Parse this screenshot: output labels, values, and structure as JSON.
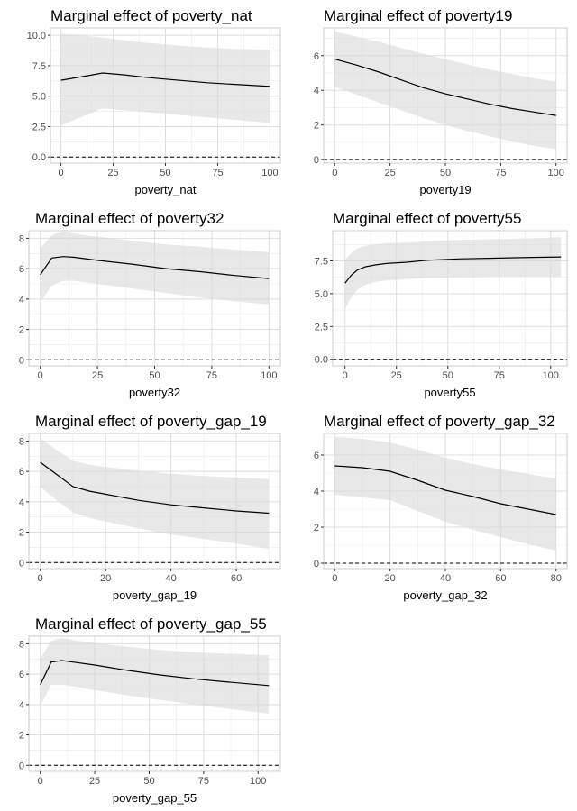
{
  "chart_data": [
    {
      "type": "line",
      "title": "Marginal effect of poverty_nat",
      "xlabel": "poverty_nat",
      "ylabel": "",
      "xlim": [
        -5,
        105
      ],
      "ylim": [
        -0.5,
        10.6
      ],
      "xticks": [
        0,
        25,
        50,
        75,
        100
      ],
      "xtick_labels": [
        "0",
        "25",
        "50",
        "75",
        "100"
      ],
      "yticks": [
        0,
        2.5,
        5,
        7.5,
        10
      ],
      "ytick_labels": [
        "0.0",
        "2.5",
        "5.0",
        "7.5",
        "10.0"
      ],
      "grid": true,
      "reference_line": 0,
      "x": [
        0,
        10,
        20,
        30,
        40,
        50,
        60,
        70,
        80,
        90,
        100
      ],
      "estimate": [
        6.3,
        6.6,
        6.9,
        6.75,
        6.55,
        6.4,
        6.25,
        6.1,
        6.0,
        5.9,
        5.8
      ],
      "lower": [
        2.6,
        3.3,
        4.0,
        3.85,
        3.7,
        3.55,
        3.4,
        3.25,
        3.1,
        2.95,
        2.8
      ],
      "upper": [
        10.1,
        10.0,
        9.8,
        9.6,
        9.4,
        9.25,
        9.1,
        9.0,
        8.9,
        8.85,
        8.8
      ]
    },
    {
      "type": "line",
      "title": "Marginal effect of poverty19",
      "xlabel": "poverty19",
      "ylabel": "",
      "xlim": [
        -5,
        105
      ],
      "ylim": [
        -0.2,
        7.6
      ],
      "xticks": [
        0,
        25,
        50,
        75,
        100
      ],
      "xtick_labels": [
        "0",
        "25",
        "50",
        "75",
        "100"
      ],
      "yticks": [
        0,
        2,
        4,
        6
      ],
      "ytick_labels": [
        "0",
        "2",
        "4",
        "6"
      ],
      "grid": true,
      "reference_line": 0,
      "x": [
        0,
        10,
        20,
        30,
        40,
        50,
        60,
        70,
        80,
        90,
        100
      ],
      "estimate": [
        5.8,
        5.45,
        5.05,
        4.6,
        4.15,
        3.8,
        3.5,
        3.2,
        2.95,
        2.75,
        2.55
      ],
      "lower": [
        4.2,
        3.75,
        3.3,
        2.85,
        2.4,
        2.0,
        1.65,
        1.35,
        1.05,
        0.8,
        0.6
      ],
      "upper": [
        7.4,
        7.1,
        6.8,
        6.45,
        6.1,
        5.8,
        5.5,
        5.2,
        4.95,
        4.7,
        4.5
      ]
    },
    {
      "type": "line",
      "title": "Marginal effect of poverty32",
      "xlabel": "poverty32",
      "ylabel": "",
      "xlim": [
        -5,
        105
      ],
      "ylim": [
        -0.4,
        8.5
      ],
      "xticks": [
        0,
        25,
        50,
        75,
        100
      ],
      "xtick_labels": [
        "0",
        "25",
        "50",
        "75",
        "100"
      ],
      "yticks": [
        0,
        2,
        4,
        6,
        8
      ],
      "ytick_labels": [
        "0",
        "2",
        "4",
        "6",
        "8"
      ],
      "grid": true,
      "reference_line": 0,
      "x": [
        0,
        5,
        10,
        15,
        25,
        40,
        55,
        70,
        85,
        100
      ],
      "estimate": [
        5.6,
        6.7,
        6.8,
        6.75,
        6.55,
        6.3,
        6.0,
        5.8,
        5.55,
        5.35
      ],
      "lower": [
        3.8,
        4.9,
        5.2,
        5.2,
        5.0,
        4.7,
        4.4,
        4.1,
        3.85,
        3.65
      ],
      "upper": [
        7.35,
        8.2,
        8.45,
        8.3,
        8.1,
        7.85,
        7.6,
        7.45,
        7.25,
        7.1
      ]
    },
    {
      "type": "line",
      "title": "Marginal effect of poverty55",
      "xlabel": "poverty55",
      "ylabel": "",
      "xlim": [
        -6,
        108
      ],
      "ylim": [
        -0.5,
        9.8
      ],
      "xticks": [
        0,
        25,
        50,
        75,
        100
      ],
      "xtick_labels": [
        "0",
        "25",
        "50",
        "75",
        "100"
      ],
      "yticks": [
        0,
        2.5,
        5,
        7.5
      ],
      "ytick_labels": [
        "0.0",
        "2.5",
        "5.0",
        "7.5"
      ],
      "grid": true,
      "reference_line": 0,
      "x": [
        0,
        3,
        6,
        10,
        15,
        20,
        30,
        40,
        55,
        70,
        85,
        105
      ],
      "estimate": [
        5.8,
        6.4,
        6.8,
        7.05,
        7.2,
        7.3,
        7.4,
        7.55,
        7.65,
        7.7,
        7.75,
        7.8
      ],
      "lower": [
        3.8,
        4.7,
        5.3,
        5.7,
        5.9,
        6.0,
        6.1,
        6.2,
        6.25,
        6.3,
        6.3,
        6.3
      ],
      "upper": [
        7.6,
        8.1,
        8.45,
        8.65,
        8.75,
        8.85,
        8.9,
        9.0,
        9.1,
        9.15,
        9.2,
        9.3
      ]
    },
    {
      "type": "line",
      "title": "Marginal effect of poverty_gap_19",
      "xlabel": "poverty_gap_19",
      "ylabel": "",
      "xlim": [
        -3.5,
        73.5
      ],
      "ylim": [
        -0.4,
        8.5
      ],
      "xticks": [
        0,
        20,
        40,
        60
      ],
      "xtick_labels": [
        "0",
        "20",
        "40",
        "60"
      ],
      "yticks": [
        0,
        2,
        4,
        6,
        8
      ],
      "ytick_labels": [
        "0",
        "2",
        "4",
        "6",
        "8"
      ],
      "grid": true,
      "reference_line": 0,
      "x": [
        0,
        5,
        10,
        15,
        20,
        30,
        40,
        50,
        60,
        70
      ],
      "estimate": [
        6.6,
        5.8,
        5.0,
        4.7,
        4.5,
        4.1,
        3.8,
        3.6,
        3.4,
        3.25
      ],
      "lower": [
        5.0,
        4.1,
        3.3,
        2.95,
        2.7,
        2.25,
        1.85,
        1.55,
        1.25,
        0.9
      ],
      "upper": [
        8.2,
        7.4,
        6.7,
        6.45,
        6.3,
        6.05,
        5.85,
        5.7,
        5.6,
        5.5
      ]
    },
    {
      "type": "line",
      "title": "Marginal effect of poverty_gap_32",
      "xlabel": "poverty_gap_32",
      "ylabel": "",
      "xlim": [
        -4,
        84
      ],
      "ylim": [
        -0.3,
        7.2
      ],
      "xticks": [
        0,
        20,
        40,
        60,
        80
      ],
      "xtick_labels": [
        "0",
        "20",
        "40",
        "60",
        "80"
      ],
      "yticks": [
        0,
        2,
        4,
        6
      ],
      "ytick_labels": [
        "0",
        "2",
        "4",
        "6"
      ],
      "grid": true,
      "reference_line": 0,
      "x": [
        0,
        10,
        20,
        30,
        40,
        50,
        60,
        70,
        80
      ],
      "estimate": [
        5.4,
        5.3,
        5.1,
        4.6,
        4.05,
        3.7,
        3.3,
        3.0,
        2.7
      ],
      "lower": [
        3.8,
        3.65,
        3.5,
        2.9,
        2.3,
        1.85,
        1.45,
        1.05,
        0.7
      ],
      "upper": [
        7.0,
        6.9,
        6.7,
        6.3,
        5.85,
        5.5,
        5.2,
        4.95,
        4.7
      ]
    },
    {
      "type": "line",
      "title": "Marginal effect of poverty_gap_55",
      "xlabel": "poverty_gap_55",
      "ylabel": "",
      "xlim": [
        -5.25,
        110.25
      ],
      "ylim": [
        -0.4,
        8.5
      ],
      "xticks": [
        0,
        25,
        50,
        75,
        100
      ],
      "xtick_labels": [
        "0",
        "25",
        "50",
        "75",
        "100"
      ],
      "yticks": [
        0,
        2,
        4,
        6,
        8
      ],
      "ytick_labels": [
        "0",
        "2",
        "4",
        "6",
        "8"
      ],
      "grid": true,
      "reference_line": 0,
      "x": [
        0,
        5,
        10,
        15,
        25,
        40,
        55,
        70,
        85,
        105
      ],
      "estimate": [
        5.3,
        6.8,
        6.9,
        6.8,
        6.6,
        6.25,
        5.95,
        5.7,
        5.5,
        5.25
      ],
      "lower": [
        3.9,
        5.3,
        5.3,
        5.2,
        4.95,
        4.6,
        4.3,
        4.0,
        3.75,
        3.4
      ],
      "upper": [
        7.0,
        8.2,
        8.4,
        8.25,
        8.05,
        7.8,
        7.6,
        7.45,
        7.35,
        7.25
      ]
    }
  ]
}
